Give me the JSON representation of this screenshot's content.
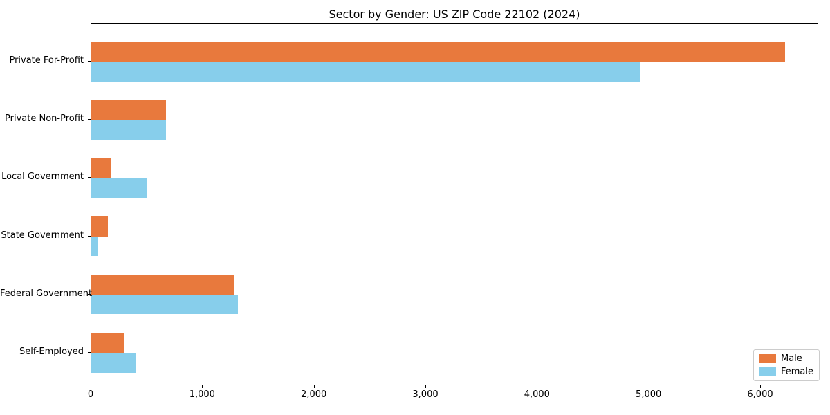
{
  "title": "Sector by Gender: US ZIP Code 22102 (2024)",
  "chart_data": {
    "type": "bar",
    "orientation": "horizontal",
    "title": "Sector by Gender: US ZIP Code 22102 (2024)",
    "categories": [
      "Private For-Profit",
      "Private Non-Profit",
      "Local Government",
      "State Government",
      "Federal Government",
      "Self-Employed"
    ],
    "series": [
      {
        "name": "Male",
        "color": "#e8793d",
        "values": [
          6220,
          670,
          180,
          150,
          1275,
          300
        ]
      },
      {
        "name": "Female",
        "color": "#87ceeb",
        "values": [
          4920,
          670,
          500,
          55,
          1315,
          405
        ]
      }
    ],
    "xlabel": "",
    "ylabel": "",
    "xlim": [
      0,
      6520
    ],
    "xticks": {
      "values": [
        0,
        1000,
        2000,
        3000,
        4000,
        5000,
        6000
      ],
      "labels": [
        "0",
        "1,000",
        "2,000",
        "3,000",
        "4,000",
        "5,000",
        "6,000"
      ]
    },
    "grid": false,
    "legend_position": "lower right",
    "background_color": "#ffffff",
    "spine_color": "#000000"
  },
  "legend": {
    "items": [
      {
        "label": "Male",
        "color": "#e8793d"
      },
      {
        "label": "Female",
        "color": "#87ceeb"
      }
    ]
  }
}
